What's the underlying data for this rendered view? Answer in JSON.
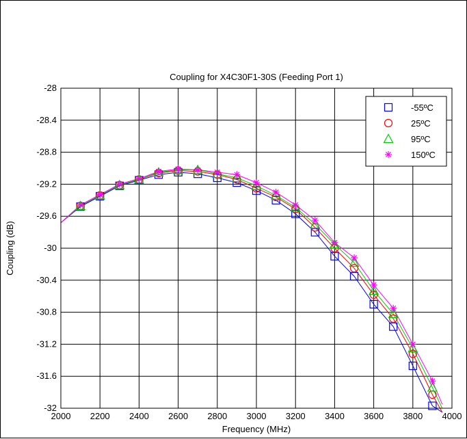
{
  "chart_data": {
    "type": "line",
    "title": "Coupling for X4C30F1-30S (Feeding Port 1)",
    "xlabel": "Frequency (MHz)",
    "ylabel": "Coupling (dB)",
    "xlim": [
      2000,
      4000
    ],
    "ylim": [
      -32,
      -28
    ],
    "xticks": [
      2000,
      2200,
      2400,
      2600,
      2800,
      3000,
      3200,
      3400,
      3600,
      3800,
      4000
    ],
    "yticks": [
      -28,
      -28.4,
      -28.8,
      -29.2,
      -29.6,
      -30,
      -30.4,
      -30.8,
      -31.2,
      -31.6,
      -32
    ],
    "grid": true,
    "legend_position": "top-right",
    "x": [
      2000,
      2100,
      2200,
      2300,
      2400,
      2500,
      2600,
      2700,
      2800,
      2900,
      3000,
      3100,
      3200,
      3300,
      3400,
      3500,
      3600,
      3700,
      3800,
      3900,
      3950
    ],
    "series": [
      {
        "name": "-55ºC",
        "color": "#0000ff",
        "marker": "square",
        "values": [
          -29.68,
          -29.48,
          -29.35,
          -29.22,
          -29.15,
          -29.08,
          -29.05,
          -29.07,
          -29.12,
          -29.18,
          -29.28,
          -29.4,
          -29.57,
          -29.8,
          -30.1,
          -30.35,
          -30.7,
          -30.98,
          -31.47,
          -31.97,
          -32.05
        ]
      },
      {
        "name": "25ºC",
        "color": "#ff0000",
        "marker": "circle",
        "values": [
          -29.68,
          -29.47,
          -29.34,
          -29.21,
          -29.14,
          -29.06,
          -29.03,
          -29.04,
          -29.08,
          -29.14,
          -29.25,
          -29.36,
          -29.51,
          -29.74,
          -30.0,
          -30.25,
          -30.58,
          -30.88,
          -31.32,
          -31.83,
          -32.05
        ]
      },
      {
        "name": "95ºC",
        "color": "#00cc00",
        "marker": "triangle",
        "values": [
          -29.68,
          -29.47,
          -29.34,
          -29.21,
          -29.14,
          -29.05,
          -29.02,
          -29.02,
          -29.07,
          -29.12,
          -29.22,
          -29.34,
          -29.49,
          -29.7,
          -29.95,
          -30.18,
          -30.53,
          -30.82,
          -31.25,
          -31.74,
          -32.0
        ]
      },
      {
        "name": "150ºC",
        "color": "#ff00ff",
        "marker": "star",
        "values": [
          -29.68,
          -29.46,
          -29.33,
          -29.2,
          -29.13,
          -29.04,
          -29.01,
          -29.02,
          -29.05,
          -29.08,
          -29.18,
          -29.3,
          -29.46,
          -29.65,
          -29.93,
          -30.12,
          -30.46,
          -30.75,
          -31.2,
          -31.66,
          -31.95
        ]
      }
    ]
  }
}
